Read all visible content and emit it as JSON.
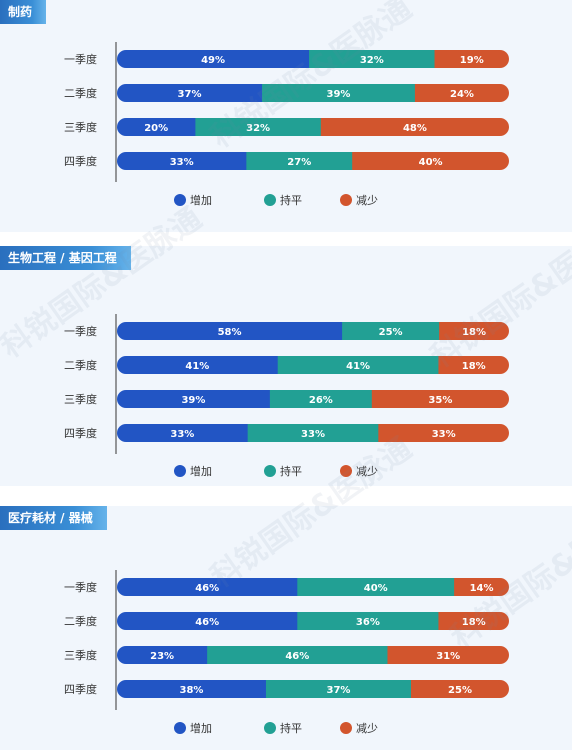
{
  "colors": {
    "increase": "#2255c4",
    "flat": "#22a094",
    "decrease": "#d2552d"
  },
  "legend": [
    "增加",
    "持平",
    "减少"
  ],
  "watermark": "科锐国际&医脉通",
  "chart_data": [
    {
      "type": "bar",
      "orientation": "horizontal",
      "stacked": "100%",
      "title": "制药",
      "categories": [
        "一季度",
        "二季度",
        "三季度",
        "四季度"
      ],
      "series": [
        {
          "name": "增加",
          "values": [
            49,
            37,
            20,
            33
          ]
        },
        {
          "name": "持平",
          "values": [
            32,
            39,
            32,
            27
          ]
        },
        {
          "name": "减少",
          "values": [
            19,
            24,
            48,
            40
          ]
        }
      ],
      "legend_position": "bottom"
    },
    {
      "type": "bar",
      "orientation": "horizontal",
      "stacked": "100%",
      "title": "生物工程 / 基因工程",
      "categories": [
        "一季度",
        "二季度",
        "三季度",
        "四季度"
      ],
      "series": [
        {
          "name": "增加",
          "values": [
            58,
            41,
            39,
            33
          ]
        },
        {
          "name": "持平",
          "values": [
            25,
            41,
            26,
            33
          ]
        },
        {
          "name": "减少",
          "values": [
            18,
            18,
            35,
            33
          ]
        }
      ],
      "legend_position": "bottom"
    },
    {
      "type": "bar",
      "orientation": "horizontal",
      "stacked": "100%",
      "title": "医疗耗材 / 器械",
      "categories": [
        "一季度",
        "二季度",
        "三季度",
        "四季度"
      ],
      "series": [
        {
          "name": "增加",
          "values": [
            46,
            46,
            23,
            38
          ]
        },
        {
          "name": "持平",
          "values": [
            40,
            36,
            46,
            37
          ]
        },
        {
          "name": "减少",
          "values": [
            14,
            18,
            31,
            25
          ]
        }
      ],
      "legend_position": "bottom"
    }
  ]
}
